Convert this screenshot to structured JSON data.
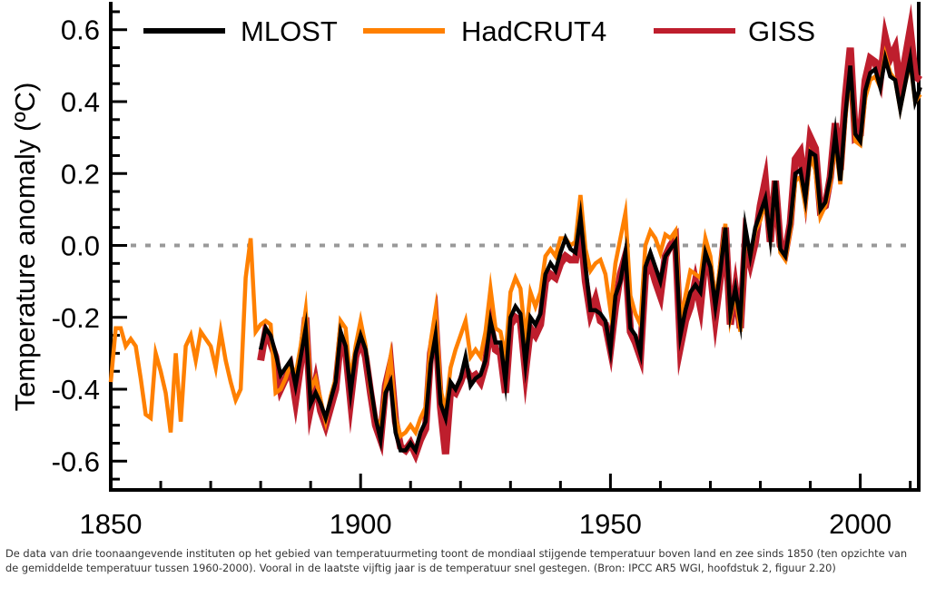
{
  "chart_data": {
    "type": "line",
    "title": "",
    "xlabel": "",
    "ylabel": "Temperature anomaly (ºC)",
    "xlim": [
      1850,
      2011.7
    ],
    "ylim": [
      -0.68,
      0.67
    ],
    "xticks": [
      1850,
      1900,
      1950,
      2000
    ],
    "xtick_labels": [
      "1850",
      "1900",
      "1950",
      "2000"
    ],
    "yticks": [
      -0.6,
      -0.4,
      -0.2,
      0.0,
      0.2,
      0.4,
      0.6
    ],
    "ytick_labels": [
      "-0.6",
      "-0.4",
      "-0.2",
      "0.0",
      "0.2",
      "0.4",
      "0.6"
    ],
    "reference_line": 0.0,
    "grid": false,
    "legend_position": "top",
    "series": [
      {
        "name": "GISS",
        "color": "#be1e2d",
        "start_year": 1880,
        "values": [
          -0.32,
          -0.24,
          -0.27,
          -0.31,
          -0.4,
          -0.37,
          -0.34,
          -0.43,
          -0.33,
          -0.2,
          -0.45,
          -0.38,
          -0.46,
          -0.5,
          -0.45,
          -0.4,
          -0.26,
          -0.29,
          -0.43,
          -0.31,
          -0.26,
          -0.31,
          -0.41,
          -0.5,
          -0.54,
          -0.39,
          -0.33,
          -0.49,
          -0.56,
          -0.57,
          -0.55,
          -0.58,
          -0.54,
          -0.51,
          -0.3,
          -0.22,
          -0.45,
          -0.58,
          -0.4,
          -0.41,
          -0.38,
          -0.34,
          -0.37,
          -0.36,
          -0.38,
          -0.33,
          -0.22,
          -0.29,
          -0.3,
          -0.41,
          -0.22,
          -0.2,
          -0.21,
          -0.35,
          -0.23,
          -0.25,
          -0.22,
          -0.1,
          -0.08,
          -0.09,
          -0.05,
          -0.03,
          -0.04,
          -0.04,
          0.05,
          -0.1,
          -0.19,
          -0.15,
          -0.21,
          -0.22,
          -0.29,
          -0.17,
          -0.08,
          -0.03,
          -0.24,
          -0.27,
          -0.31,
          -0.08,
          -0.05,
          -0.1,
          -0.14,
          -0.03,
          0.0,
          0.02,
          -0.28,
          -0.21,
          -0.17,
          -0.1,
          -0.17,
          -0.03,
          -0.07,
          -0.2,
          -0.09,
          0.05,
          -0.22,
          -0.12,
          -0.23,
          0.01,
          -0.05,
          0.01,
          0.11,
          0.18,
          0.01,
          0.18,
          0.0,
          -0.02,
          0.06,
          0.24,
          0.26,
          0.15,
          0.3,
          0.27,
          0.1,
          0.11,
          0.19,
          0.34,
          0.21,
          0.41,
          0.55,
          0.3,
          0.31,
          0.46,
          0.52,
          0.51,
          0.46,
          0.58,
          0.52,
          0.55,
          0.44,
          0.52,
          0.6,
          0.47,
          0.46
        ]
      },
      {
        "name": "HadCRUT4",
        "color": "#ff8000",
        "start_year": 1850,
        "values": [
          -0.38,
          -0.23,
          -0.23,
          -0.28,
          -0.26,
          -0.28,
          -0.37,
          -0.47,
          -0.48,
          -0.3,
          -0.35,
          -0.41,
          -0.52,
          -0.3,
          -0.49,
          -0.28,
          -0.25,
          -0.32,
          -0.24,
          -0.26,
          -0.28,
          -0.34,
          -0.24,
          -0.32,
          -0.38,
          -0.43,
          -0.4,
          -0.09,
          0.02,
          -0.24,
          -0.22,
          -0.21,
          -0.22,
          -0.41,
          -0.4,
          -0.37,
          -0.33,
          -0.36,
          -0.28,
          -0.18,
          -0.4,
          -0.37,
          -0.43,
          -0.49,
          -0.42,
          -0.37,
          -0.21,
          -0.23,
          -0.38,
          -0.28,
          -0.21,
          -0.28,
          -0.4,
          -0.48,
          -0.51,
          -0.39,
          -0.31,
          -0.48,
          -0.53,
          -0.52,
          -0.5,
          -0.52,
          -0.48,
          -0.45,
          -0.27,
          -0.18,
          -0.4,
          -0.46,
          -0.34,
          -0.29,
          -0.25,
          -0.21,
          -0.31,
          -0.29,
          -0.31,
          -0.24,
          -0.12,
          -0.23,
          -0.24,
          -0.31,
          -0.13,
          -0.09,
          -0.12,
          -0.26,
          -0.13,
          -0.17,
          -0.13,
          -0.03,
          -0.01,
          -0.03,
          0.02,
          0.02,
          0.0,
          0.01,
          0.14,
          -0.01,
          -0.07,
          -0.05,
          -0.04,
          -0.08,
          -0.18,
          -0.05,
          0.02,
          0.09,
          -0.14,
          -0.19,
          -0.22,
          0.0,
          0.04,
          0.02,
          -0.02,
          0.03,
          0.02,
          0.04,
          -0.21,
          -0.14,
          -0.07,
          -0.08,
          -0.09,
          0.02,
          -0.03,
          -0.16,
          -0.05,
          0.06,
          -0.2,
          -0.13,
          -0.24,
          0.04,
          -0.03,
          0.04,
          0.07,
          0.12,
          0.02,
          0.18,
          -0.02,
          -0.04,
          0.04,
          0.18,
          0.19,
          0.11,
          0.25,
          0.21,
          0.08,
          0.11,
          0.17,
          0.29,
          0.17,
          0.35,
          0.49,
          0.29,
          0.28,
          0.41,
          0.46,
          0.47,
          0.44,
          0.53,
          0.48,
          0.46,
          0.38,
          0.45,
          0.51,
          0.4,
          0.42
        ]
      },
      {
        "name": "MLOST",
        "color": "#000000",
        "start_year": 1880,
        "values": [
          -0.29,
          -0.23,
          -0.25,
          -0.3,
          -0.36,
          -0.34,
          -0.32,
          -0.39,
          -0.31,
          -0.23,
          -0.44,
          -0.41,
          -0.44,
          -0.48,
          -0.43,
          -0.38,
          -0.24,
          -0.28,
          -0.41,
          -0.3,
          -0.25,
          -0.29,
          -0.39,
          -0.48,
          -0.54,
          -0.41,
          -0.38,
          -0.52,
          -0.57,
          -0.57,
          -0.55,
          -0.57,
          -0.52,
          -0.49,
          -0.33,
          -0.25,
          -0.44,
          -0.48,
          -0.38,
          -0.4,
          -0.37,
          -0.31,
          -0.39,
          -0.37,
          -0.36,
          -0.32,
          -0.21,
          -0.27,
          -0.27,
          -0.38,
          -0.2,
          -0.17,
          -0.19,
          -0.33,
          -0.2,
          -0.22,
          -0.19,
          -0.08,
          -0.05,
          -0.07,
          -0.02,
          0.02,
          -0.01,
          -0.02,
          0.08,
          -0.06,
          -0.18,
          -0.18,
          -0.19,
          -0.21,
          -0.29,
          -0.14,
          -0.1,
          -0.02,
          -0.23,
          -0.25,
          -0.3,
          -0.06,
          -0.02,
          -0.06,
          -0.1,
          -0.03,
          -0.01,
          0.01,
          -0.25,
          -0.18,
          -0.13,
          -0.11,
          -0.13,
          -0.02,
          -0.06,
          -0.17,
          -0.07,
          0.05,
          -0.19,
          -0.12,
          -0.21,
          0.05,
          -0.03,
          0.05,
          0.09,
          0.13,
          0.02,
          0.18,
          -0.01,
          -0.03,
          0.06,
          0.2,
          0.21,
          0.13,
          0.26,
          0.25,
          0.1,
          0.12,
          0.19,
          0.31,
          0.18,
          0.36,
          0.5,
          0.31,
          0.29,
          0.43,
          0.48,
          0.49,
          0.44,
          0.52,
          0.47,
          0.46,
          0.38,
          0.45,
          0.52,
          0.4,
          0.44
        ]
      }
    ],
    "legend": [
      "MLOST",
      "HadCRUT4",
      "GISS"
    ]
  },
  "caption": "De data van drie toonaangevende instituten op het gebied van temperatuurmeting toont de mondiaal stijgende temperatuur boven land en zee sinds 1850 (ten opzichte van de gemiddelde temperatuur tussen 1960-2000). Vooral in de laatste vijftig jaar is de temperatuur snel gestegen. (Bron: IPCC AR5 WGI, hoofdstuk 2, figuur 2.20)"
}
